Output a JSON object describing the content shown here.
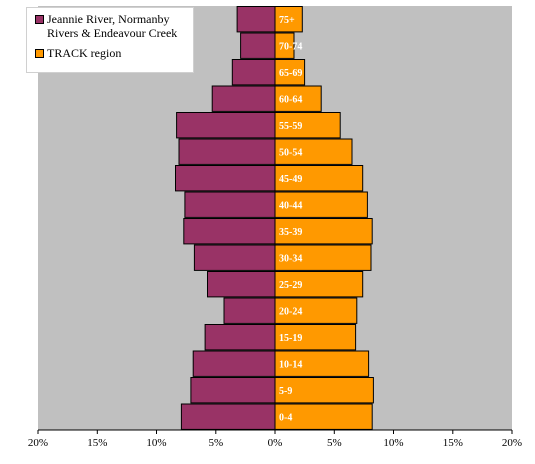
{
  "chart_data": {
    "type": "bar",
    "orientation": "horizontal",
    "categories": [
      "0-4",
      "5-9",
      "10-14",
      "15-19",
      "20-24",
      "25-29",
      "30-34",
      "35-39",
      "40-44",
      "45-49",
      "50-54",
      "55-59",
      "60-64",
      "65-69",
      "70-74",
      "75+"
    ],
    "series": [
      {
        "name": "Jeannie River, Normanby Rivers & Endeavour Creek",
        "color": "#993366",
        "side": "left",
        "values": [
          7.9,
          7.1,
          6.9,
          5.9,
          4.3,
          5.7,
          6.8,
          7.7,
          7.6,
          8.4,
          8.1,
          8.3,
          5.3,
          3.6,
          2.9,
          3.2
        ]
      },
      {
        "name": "TRACK region",
        "color": "#FF9900",
        "side": "right",
        "values": [
          8.2,
          8.3,
          7.9,
          6.8,
          6.9,
          7.4,
          8.1,
          8.2,
          7.8,
          7.4,
          6.5,
          5.5,
          3.9,
          2.5,
          1.6,
          2.3
        ]
      }
    ],
    "xlim": [
      -20,
      20
    ],
    "xticks": [
      "20%",
      "15%",
      "10%",
      "5%",
      "0%",
      "5%",
      "10%",
      "15%",
      "20%"
    ],
    "plot_background": "#C0C0C0",
    "grid": false,
    "legend": "top-left"
  },
  "legend": {
    "series1": "Jeannie River, Normanby Rivers & Endeavour Creek",
    "series1_line1": "Jeannie River, Normanby",
    "series1_line2": "Rivers & Endeavour Creek",
    "series2": "TRACK region"
  }
}
